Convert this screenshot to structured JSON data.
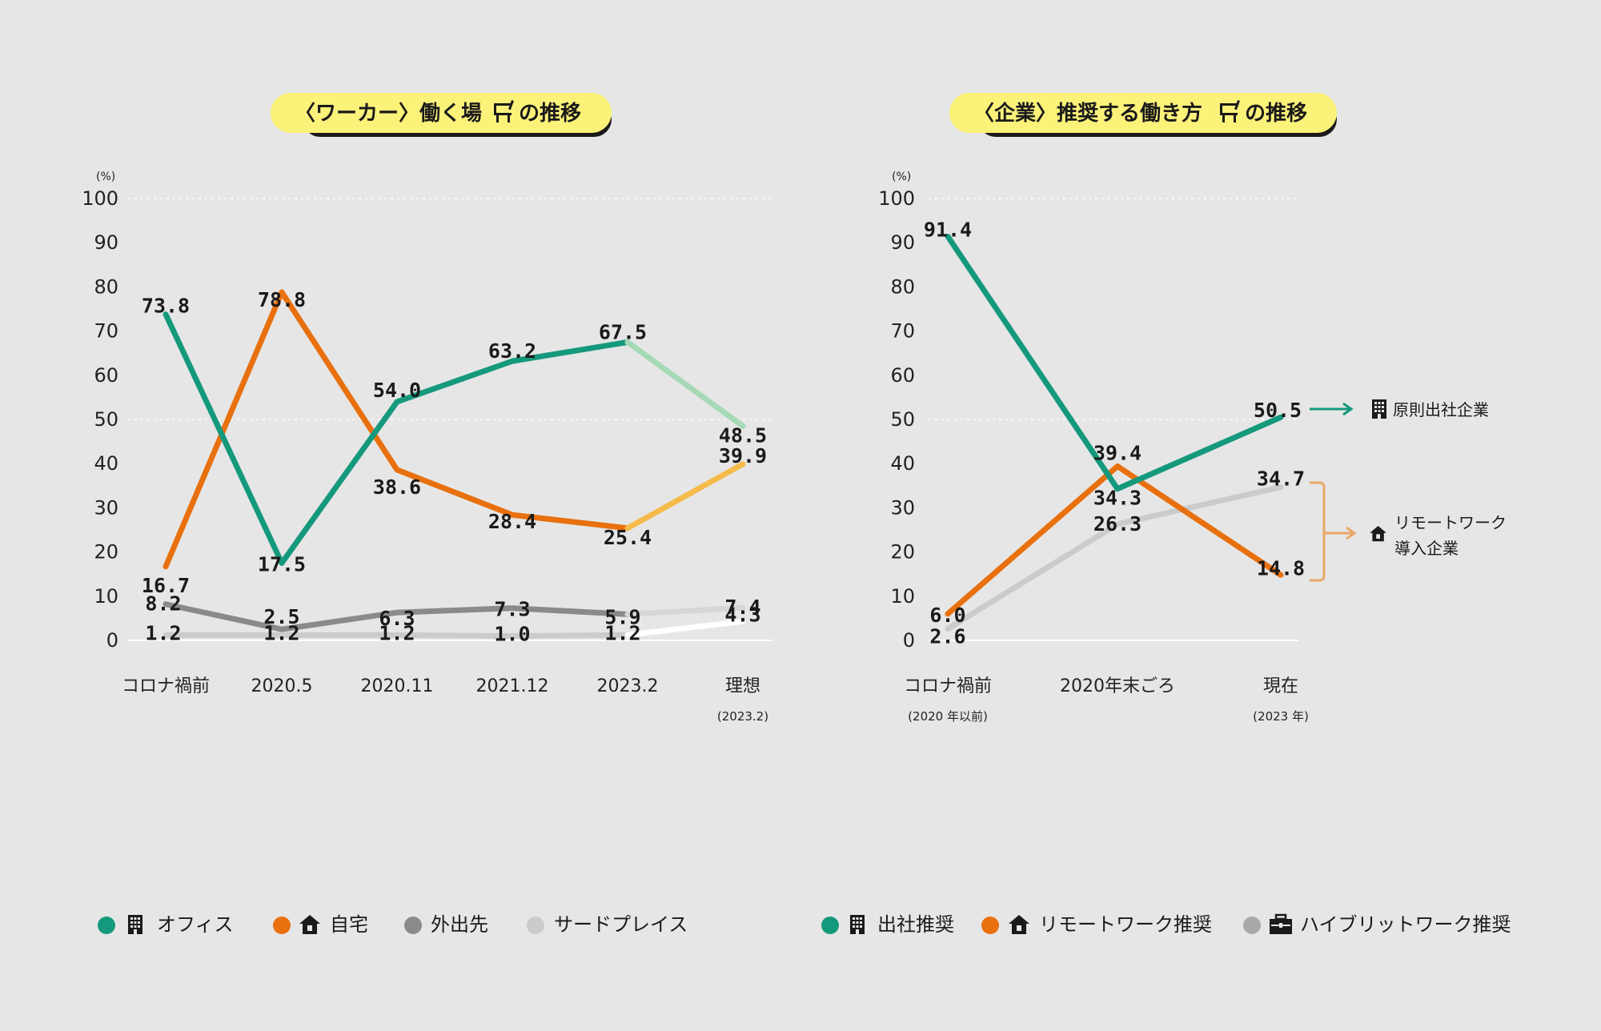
{
  "colors": {
    "office": "#15997d",
    "home": "#e8700e",
    "outing": "#8a8a8a",
    "third_place": "#cbcbcb",
    "office_ideal": "#a5d9b6",
    "home_ideal": "#f5bb4a",
    "outing_ideal": "#d6d6d6",
    "third_ideal": "#ffffff",
    "title_bg": "#fbf27a",
    "remote_bracket": "#e8a86a"
  },
  "chart_data": [
    {
      "type": "line",
      "title": "〈ワーカー〉働く場 の推移",
      "title_icon": "chair-icon",
      "unit_label": "(%)",
      "ylim": [
        0,
        100
      ],
      "yticks": [
        "100",
        "90",
        "80",
        "70",
        "60",
        "50",
        "40",
        "30",
        "20",
        "10",
        "0"
      ],
      "categories": [
        "コロナ禍前",
        "2020.5",
        "2020.11",
        "2021.12",
        "2023.2",
        "理想"
      ],
      "category_sub": [
        "",
        "",
        "",
        "",
        "",
        "(2023.2)"
      ],
      "series": [
        {
          "name": "オフィス",
          "icon": "building-icon",
          "values": [
            73.8,
            17.5,
            54.0,
            63.2,
            67.5,
            48.5
          ],
          "labels": [
            "73.8",
            "17.5",
            "54.0",
            "63.2",
            "67.5",
            "48.5"
          ]
        },
        {
          "name": "自宅",
          "icon": "house-icon",
          "values": [
            16.7,
            78.8,
            38.6,
            28.4,
            25.4,
            39.9
          ],
          "labels": [
            "16.7",
            "78.8",
            "38.6",
            "28.4",
            "25.4",
            "39.9"
          ]
        },
        {
          "name": "外出先",
          "icon": "",
          "values": [
            8.2,
            2.5,
            6.3,
            7.3,
            5.9,
            7.4
          ],
          "labels": [
            "8.2",
            "2.5",
            "6.3",
            "7.3",
            "5.9",
            "7.4"
          ]
        },
        {
          "name": "サードプレイス",
          "icon": "",
          "values": [
            1.2,
            1.2,
            1.2,
            1.0,
            1.2,
            4.3
          ],
          "labels": [
            "1.2",
            "1.2",
            "1.2",
            "1.0",
            "1.2",
            "4.3"
          ]
        }
      ]
    },
    {
      "type": "line",
      "title": "〈企業〉推奨する働き方 の推移",
      "title_icon": "chair-icon",
      "unit_label": "(%)",
      "ylim": [
        0,
        100
      ],
      "yticks": [
        "100",
        "90",
        "80",
        "70",
        "60",
        "50",
        "40",
        "30",
        "20",
        "10",
        "0"
      ],
      "categories": [
        "コロナ禍前",
        "2020年末ごろ",
        "現在"
      ],
      "category_sub": [
        "(2020 年以前)",
        "",
        "(2023 年)"
      ],
      "series": [
        {
          "name": "出社推奨",
          "icon": "building-icon",
          "values": [
            91.4,
            34.3,
            50.5
          ],
          "labels": [
            "91.4",
            "34.3",
            "50.5"
          ]
        },
        {
          "name": "リモートワーク推奨",
          "icon": "house-icon",
          "values": [
            6.0,
            39.4,
            14.8
          ],
          "labels": [
            "6.0",
            "39.4",
            "14.8"
          ]
        },
        {
          "name": "ハイブリットワーク推奨",
          "icon": "briefcase-icon",
          "values": [
            2.6,
            26.3,
            34.7
          ],
          "labels": [
            "2.6",
            "26.3",
            "34.7"
          ]
        }
      ],
      "annotations": [
        {
          "text": "原則出社企業",
          "icon": "building-icon"
        },
        {
          "text_line1": "リモートワーク",
          "text_line2": "導入企業",
          "icon": "house-icon"
        }
      ]
    }
  ]
}
